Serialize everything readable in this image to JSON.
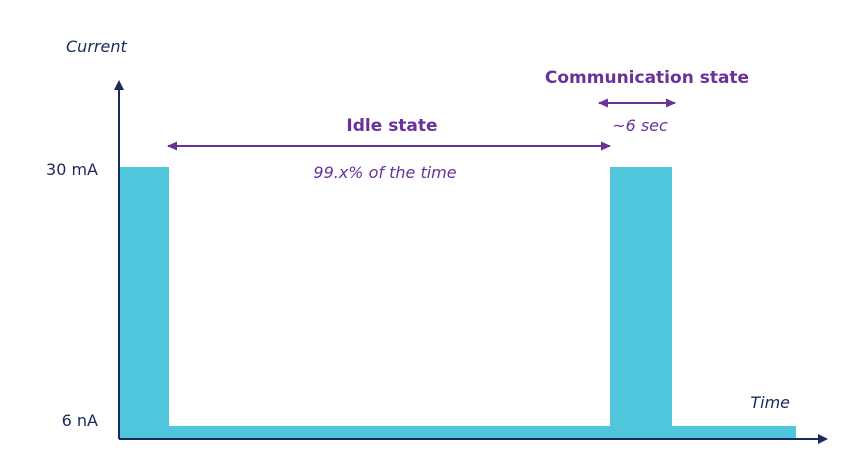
{
  "colors": {
    "axis": "#1a2a5e",
    "signal": "#4fc6dc",
    "annotation": "#6a3199",
    "text": "#1a2a5e"
  },
  "axes": {
    "y_title": "Current",
    "x_title": "Time"
  },
  "levels": {
    "high": "30 mA",
    "low": "6 nA"
  },
  "idle": {
    "title": "Idle state",
    "note": "99.x% of the time"
  },
  "communication": {
    "title": "Communication state",
    "note": "~6 sec"
  }
}
